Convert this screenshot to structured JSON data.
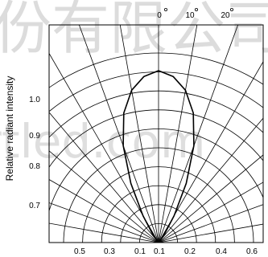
{
  "chart_data": {
    "type": "polar",
    "title": "",
    "ylabel": "Relative radiant intensity",
    "angle_ticks": [
      {
        "label": "0",
        "deg": 0
      },
      {
        "label": "10",
        "deg": 10
      },
      {
        "label": "20",
        "deg": 20
      }
    ],
    "angle_step_deg": 10,
    "radial_ticks_left": [
      "1.0",
      "0.9",
      "0.8",
      "0.7"
    ],
    "bottom_ticks": [
      "0.5",
      "0.3",
      "0.1",
      "0.1",
      "0.2",
      "0.4",
      "0.6"
    ],
    "series": [
      {
        "description_free": true,
        "relative_intensity_by_angle": [
          {
            "angle": 0,
            "value": 1.0
          },
          {
            "angle": 5,
            "value": 0.97
          },
          {
            "angle": 10,
            "value": 0.9
          },
          {
            "angle": 15,
            "value": 0.78
          },
          {
            "angle": 20,
            "value": 0.6
          },
          {
            "angle": 25,
            "value": 0.38
          },
          {
            "angle": 30,
            "value": 0.18
          },
          {
            "angle": 35,
            "value": 0.06
          },
          {
            "angle": 40,
            "value": 0.0
          }
        ]
      }
    ],
    "grid": true
  },
  "watermark": {
    "text_top": "份有限公司",
    "text_mid": "rtled.com",
    "color": "#c9c9c9"
  }
}
